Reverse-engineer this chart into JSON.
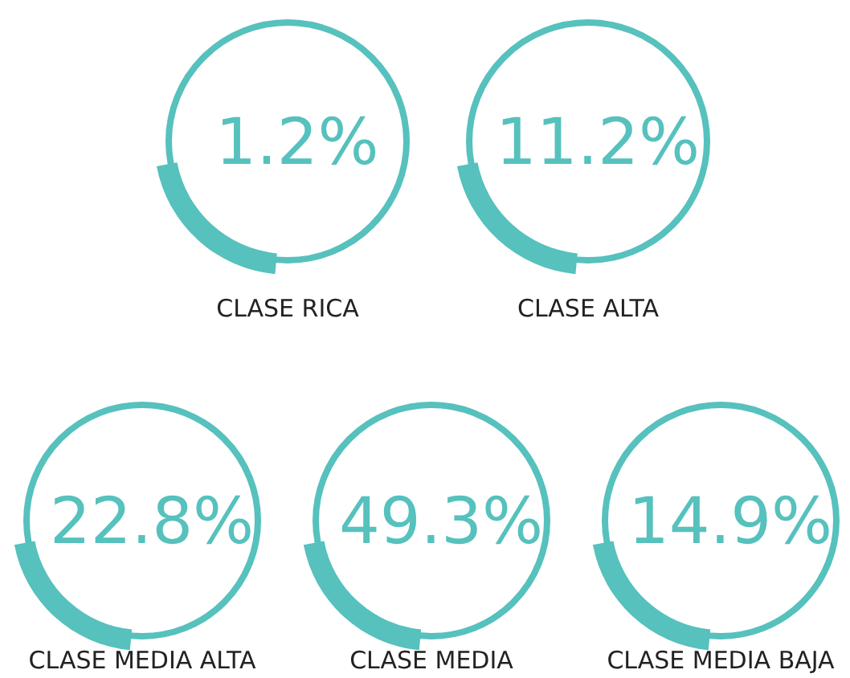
{
  "chart_data": {
    "type": "other",
    "categories": [
      "CLASE RICA",
      "CLASE ALTA",
      "CLASE MEDIA ALTA",
      "CLASE MEDIA",
      "CLASE MEDIA BAJA"
    ],
    "values": [
      1.2,
      11.2,
      22.8,
      49.3,
      14.9
    ],
    "value_labels": [
      "1.2%",
      "11.2%",
      "22.8%",
      "49.3%",
      "14.9%"
    ],
    "color": "#56c1bd"
  }
}
